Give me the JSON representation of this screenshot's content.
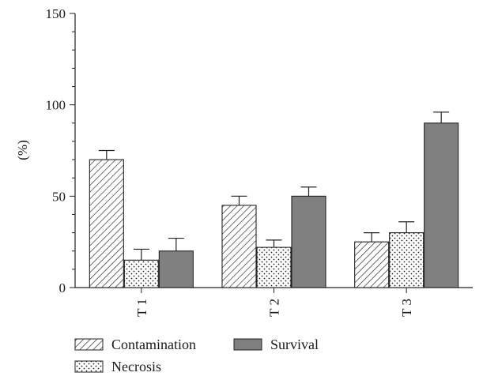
{
  "chart_data": {
    "type": "bar",
    "title": "",
    "xlabel": "",
    "ylabel": "(%)",
    "ylim": [
      0,
      150
    ],
    "yticks": [
      0,
      50,
      100,
      150
    ],
    "categories": [
      "T 1",
      "T 2",
      "T 3"
    ],
    "series": [
      {
        "name": "Contamination",
        "pattern": "diagonal-hatch",
        "values": [
          70,
          45,
          25
        ],
        "errors": [
          5,
          5,
          5
        ]
      },
      {
        "name": "Necrosis",
        "pattern": "dots",
        "values": [
          15,
          22,
          30
        ],
        "errors": [
          6,
          4,
          6
        ]
      },
      {
        "name": "Survival",
        "pattern": "solid",
        "color": "#808080",
        "values": [
          20,
          50,
          90
        ],
        "errors": [
          7,
          5,
          6
        ]
      }
    ],
    "legend": "bottom-left",
    "grid": false
  }
}
